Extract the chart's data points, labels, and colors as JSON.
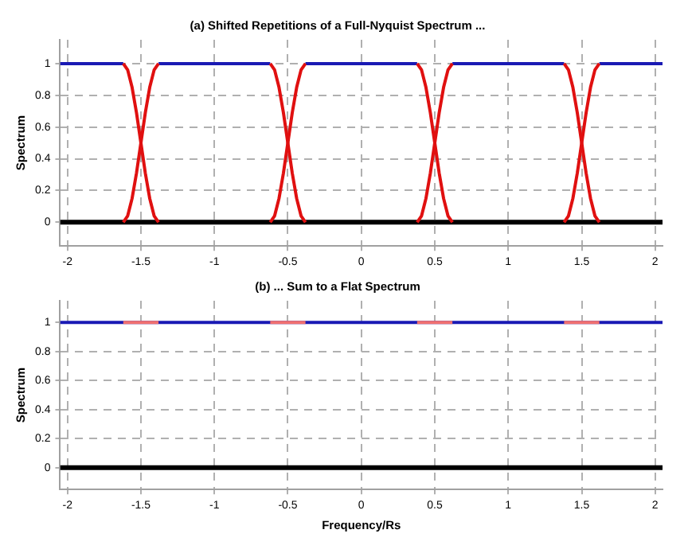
{
  "chart_data": [
    {
      "type": "line",
      "title": "(a) Shifted Repetitions of a Full-Nyquist Spectrum ...",
      "ylabel": "Spectrum",
      "xlim": [
        -2.05,
        2.05
      ],
      "ylim": [
        -0.15,
        1.15
      ],
      "xticks": [
        -2,
        -1.5,
        -1,
        -0.5,
        0,
        0.5,
        1,
        1.5,
        2
      ],
      "yticks": [
        0,
        0.2,
        0.4,
        0.6,
        0.8,
        1
      ],
      "grid": true,
      "legend": false,
      "marker": "none",
      "line_style": "solid",
      "series": [
        {
          "color": "#1a1ab4",
          "x": [
            -2.05,
            -1.62,
            -1.5,
            -1.38,
            -0.62,
            -0.5,
            -0.38,
            0.38,
            0.5,
            0.62,
            1.38,
            1.5,
            1.62,
            2.05
          ],
          "values": [
            1,
            1,
            null,
            1,
            1,
            null,
            1,
            1,
            null,
            1,
            1,
            null,
            1,
            1
          ]
        },
        {
          "color": "#000000",
          "x": [
            -2.05,
            2.05
          ],
          "values": [
            0,
            0
          ]
        },
        {
          "color": "#e01010",
          "x": [
            -1.62,
            -1.59,
            -1.56,
            -1.53,
            -1.5,
            -1.47,
            -1.44,
            -1.41,
            -1.38
          ],
          "values": [
            1,
            0.96,
            0.85,
            0.69,
            0.5,
            0.31,
            0.15,
            0.04,
            0
          ]
        },
        {
          "color": "#e01010",
          "x": [
            -1.62,
            -1.59,
            -1.56,
            -1.53,
            -1.5,
            -1.47,
            -1.44,
            -1.41,
            -1.38
          ],
          "values": [
            0,
            0.04,
            0.15,
            0.31,
            0.5,
            0.69,
            0.85,
            0.96,
            1
          ]
        },
        {
          "color": "#e01010",
          "x": [
            -0.62,
            -0.59,
            -0.56,
            -0.53,
            -0.5,
            -0.47,
            -0.44,
            -0.41,
            -0.38
          ],
          "values": [
            1,
            0.96,
            0.85,
            0.69,
            0.5,
            0.31,
            0.15,
            0.04,
            0
          ]
        },
        {
          "color": "#e01010",
          "x": [
            -0.62,
            -0.59,
            -0.56,
            -0.53,
            -0.5,
            -0.47,
            -0.44,
            -0.41,
            -0.38
          ],
          "values": [
            0,
            0.04,
            0.15,
            0.31,
            0.5,
            0.69,
            0.85,
            0.96,
            1
          ]
        },
        {
          "color": "#e01010",
          "x": [
            0.38,
            0.41,
            0.44,
            0.47,
            0.5,
            0.53,
            0.56,
            0.59,
            0.62
          ],
          "values": [
            1,
            0.96,
            0.85,
            0.69,
            0.5,
            0.31,
            0.15,
            0.04,
            0
          ]
        },
        {
          "color": "#e01010",
          "x": [
            0.38,
            0.41,
            0.44,
            0.47,
            0.5,
            0.53,
            0.56,
            0.59,
            0.62
          ],
          "values": [
            0,
            0.04,
            0.15,
            0.31,
            0.5,
            0.69,
            0.85,
            0.96,
            1
          ]
        },
        {
          "color": "#e01010",
          "x": [
            1.38,
            1.41,
            1.44,
            1.47,
            1.5,
            1.53,
            1.56,
            1.59,
            1.62
          ],
          "values": [
            1,
            0.96,
            0.85,
            0.69,
            0.5,
            0.31,
            0.15,
            0.04,
            0
          ]
        },
        {
          "color": "#e01010",
          "x": [
            1.38,
            1.41,
            1.44,
            1.47,
            1.5,
            1.53,
            1.56,
            1.59,
            1.62
          ],
          "values": [
            0,
            0.04,
            0.15,
            0.31,
            0.5,
            0.69,
            0.85,
            0.96,
            1
          ]
        }
      ]
    },
    {
      "type": "line",
      "title": "(b) ... Sum to a Flat Spectrum",
      "xlabel": "Frequency/Rs",
      "ylabel": "Spectrum",
      "xlim": [
        -2.05,
        2.05
      ],
      "ylim": [
        -0.15,
        1.15
      ],
      "xticks": [
        -2,
        -1.5,
        -1,
        -0.5,
        0,
        0.5,
        1,
        1.5,
        2
      ],
      "yticks": [
        0,
        0.2,
        0.4,
        0.6,
        0.8,
        1
      ],
      "grid": true,
      "legend": false,
      "marker": "none",
      "line_style": "solid",
      "series": [
        {
          "color": "#1a1ab4",
          "x": [
            -2.05,
            2.05
          ],
          "values": [
            1,
            1
          ]
        },
        {
          "color": "#000000",
          "x": [
            -2.05,
            2.05
          ],
          "values": [
            0,
            0
          ]
        },
        {
          "color": "#f07070",
          "x": [
            -1.62,
            -1.38
          ],
          "values": [
            1,
            1
          ]
        },
        {
          "color": "#f07070",
          "x": [
            -0.62,
            -0.38
          ],
          "values": [
            1,
            1
          ]
        },
        {
          "color": "#f07070",
          "x": [
            0.38,
            0.62
          ],
          "values": [
            1,
            1
          ]
        },
        {
          "color": "#f07070",
          "x": [
            1.38,
            1.62
          ],
          "values": [
            1,
            1
          ]
        }
      ]
    }
  ]
}
